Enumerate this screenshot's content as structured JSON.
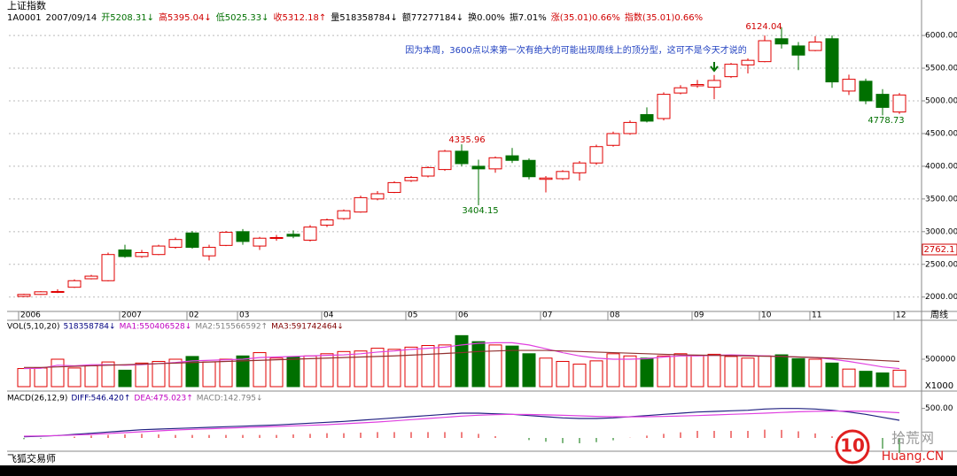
{
  "header": {
    "title": "上证指数",
    "info": [
      {
        "text": "1A0001",
        "color": "#000000"
      },
      {
        "text": "2007/09/14",
        "color": "#000000"
      },
      {
        "text": "开5208.31↓",
        "color": "#007000"
      },
      {
        "text": "高5395.04↓",
        "color": "#d00000"
      },
      {
        "text": "低5025.33↓",
        "color": "#007000"
      },
      {
        "text": "收5312.18↑",
        "color": "#d00000"
      },
      {
        "text": "量518358784↓",
        "color": "#000000"
      },
      {
        "text": "额77277184↓",
        "color": "#000000"
      },
      {
        "text": "换0.00%",
        "color": "#000000"
      },
      {
        "text": "振7.01%",
        "color": "#000000"
      },
      {
        "text": "涨(35.01)0.66%",
        "color": "#d00000"
      },
      {
        "text": "指数(35.01)0.66%",
        "color": "#d00000"
      }
    ]
  },
  "footer": {
    "app": "飞狐交易师",
    "watermark_logo": "10",
    "watermark_name": "拾荒网",
    "watermark_site": "Huang.CN"
  },
  "chart_data": [
    {
      "type": "candlestick",
      "categories": [
        "2006",
        null,
        null,
        null,
        null,
        null,
        "2007",
        null,
        null,
        null,
        "02",
        null,
        null,
        "03",
        null,
        null,
        null,
        null,
        "04",
        null,
        null,
        null,
        null,
        "05",
        null,
        null,
        "06",
        null,
        null,
        null,
        null,
        "07",
        null,
        null,
        null,
        "08",
        null,
        null,
        null,
        null,
        "09",
        null,
        null,
        null,
        "10",
        null,
        null,
        "11",
        null,
        null,
        null,
        null,
        "12"
      ],
      "x_axis_label": "周线",
      "open": [
        2010,
        2040,
        2080,
        2150,
        2280,
        2250,
        2720,
        2620,
        2650,
        2760,
        2980,
        2630,
        2790,
        3000,
        2780,
        2900,
        2960,
        2870,
        3100,
        3200,
        3300,
        3500,
        3600,
        3780,
        3850,
        3950,
        4230,
        4000,
        3960,
        4160,
        4090,
        3800,
        3810,
        3900,
        4050,
        4320,
        4500,
        4790,
        4730,
        5120,
        5230,
        5208.31,
        5370,
        5550,
        5600,
        5950,
        5840,
        5770,
        5950,
        5150,
        5300,
        5100,
        4830
      ],
      "high": [
        2050,
        2090,
        2120,
        2270,
        2340,
        2680,
        2800,
        2720,
        2800,
        2910,
        3010,
        2800,
        3010,
        3040,
        2920,
        2950,
        3020,
        3100,
        3200,
        3340,
        3550,
        3620,
        3770,
        3850,
        4000,
        4250,
        4335.96,
        4100,
        4150,
        4280,
        4120,
        3850,
        3940,
        4080,
        4330,
        4530,
        4700,
        4900,
        5130,
        5240,
        5320,
        5395.04,
        5580,
        5650,
        6000,
        6124.04,
        5900,
        5990,
        6000,
        5400,
        5340,
        5180,
        5120
      ],
      "low": [
        2000,
        2030,
        2060,
        2140,
        2270,
        2240,
        2600,
        2600,
        2640,
        2740,
        2740,
        2560,
        2780,
        2800,
        2720,
        2860,
        2900,
        2850,
        3070,
        3180,
        3290,
        3480,
        3590,
        3760,
        3830,
        3930,
        4000,
        3404.15,
        3900,
        4050,
        3800,
        3600,
        3790,
        3780,
        4020,
        4300,
        4480,
        4670,
        4700,
        5100,
        5200,
        5025.33,
        5350,
        5420,
        5590,
        5800,
        5470,
        5760,
        5200,
        5090,
        4950,
        4778.73,
        4800
      ],
      "close": [
        2040,
        2080,
        2085,
        2250,
        2320,
        2650,
        2620,
        2680,
        2780,
        2880,
        2760,
        2760,
        2990,
        2850,
        2900,
        2910,
        2930,
        3070,
        3180,
        3320,
        3520,
        3580,
        3750,
        3830,
        3980,
        4230,
        4040,
        3960,
        4130,
        4090,
        3840,
        3820,
        3920,
        4050,
        4300,
        4500,
        4670,
        4690,
        5100,
        5200,
        5250,
        5312.18,
        5560,
        5620,
        5920,
        5870,
        5700,
        5900,
        5290,
        5330,
        5000,
        4900,
        5090
      ],
      "up_color": "#e00000",
      "down_color": "#007000",
      "ylim": [
        1780,
        6380
      ],
      "yticks": [
        {
          "value": 2000,
          "label": "2000.00"
        },
        {
          "value": 2500,
          "label": "2500.00"
        },
        {
          "value": 3000,
          "label": "3000.00"
        },
        {
          "value": 3500,
          "label": "3500.00"
        },
        {
          "value": 4000,
          "label": "4000.00"
        },
        {
          "value": 4500,
          "label": "4500.00"
        },
        {
          "value": 5000,
          "label": "5000.00"
        },
        {
          "value": 5500,
          "label": "5500.00"
        },
        {
          "value": 6000,
          "label": "6000.00"
        }
      ],
      "grid": true,
      "annotations": [
        "4335.96",
        "3404.15",
        "6124.04",
        "4778.73",
        "因为本周，3600点以来第一次有绝大的可能出现周线上的顶分型，这可不是今天才说的"
      ],
      "cursor_label": "2762.1"
    },
    {
      "type": "bar",
      "legend": [
        {
          "text": "VOL(5,10,20)",
          "color": "#000000"
        },
        {
          "text": "518358784↓",
          "color": "#000080"
        },
        {
          "text": "MA1:550406528↓",
          "color": "#c000c0"
        },
        {
          "text": "MA2:515566592↑",
          "color": "#808080"
        },
        {
          "text": "MA3:591742464↓",
          "color": "#800000"
        }
      ],
      "values": [
        330000,
        340000,
        500000,
        340000,
        380000,
        450000,
        300000,
        430000,
        460000,
        500000,
        550000,
        450000,
        500000,
        560000,
        620000,
        520000,
        540000,
        560000,
        600000,
        640000,
        650000,
        700000,
        680000,
        720000,
        750000,
        760000,
        930000,
        820000,
        760000,
        740000,
        600000,
        520000,
        460000,
        410000,
        470000,
        600000,
        560000,
        520000,
        560000,
        600000,
        570000,
        590000,
        550000,
        520000,
        560000,
        580000,
        510000,
        500000,
        430000,
        320000,
        280000,
        250000,
        300000
      ],
      "lines": [
        {
          "color": "#e040e0",
          "values": [
            330000,
            335000,
            390000,
            380000,
            400000,
            400000,
            390000,
            400000,
            420000,
            440000,
            470000,
            480000,
            490000,
            500000,
            530000,
            540000,
            550000,
            560000,
            570000,
            580000,
            600000,
            630000,
            650000,
            680000,
            700000,
            720000,
            760000,
            790000,
            800000,
            800000,
            760000,
            690000,
            620000,
            560000,
            520000,
            500000,
            500000,
            510000,
            540000,
            560000,
            560000,
            570000,
            580000,
            570000,
            560000,
            550000,
            540000,
            530000,
            500000,
            460000,
            410000,
            360000,
            330000
          ]
        },
        {
          "color": "#903030",
          "values": [
            350000,
            350000,
            360000,
            370000,
            380000,
            390000,
            400000,
            410000,
            420000,
            430000,
            440000,
            450000,
            460000,
            470000,
            480000,
            490000,
            500000,
            510000,
            520000,
            530000,
            540000,
            550000,
            560000,
            575000,
            590000,
            605000,
            620000,
            640000,
            650000,
            660000,
            660000,
            660000,
            650000,
            640000,
            630000,
            620000,
            610000,
            600000,
            590000,
            580000,
            575000,
            570000,
            565000,
            560000,
            555000,
            550000,
            540000,
            530000,
            520000,
            505000,
            490000,
            475000,
            460000
          ]
        }
      ],
      "ylim": [
        0,
        1000000
      ],
      "yticks": [
        500000
      ],
      "unit_label": "X1000"
    },
    {
      "type": "line",
      "legend": [
        {
          "text": "MACD(26,12,9)",
          "color": "#000000"
        },
        {
          "text": "DIFF:546.420↑",
          "color": "#000080"
        },
        {
          "text": "DEA:475.023↑",
          "color": "#c000c0"
        },
        {
          "text": "MACD:142.795↓",
          "color": "#808080"
        }
      ],
      "series": [
        {
          "color": "#202080",
          "values": [
            20,
            30,
            40,
            60,
            80,
            100,
            120,
            140,
            150,
            160,
            170,
            180,
            190,
            200,
            210,
            220,
            235,
            250,
            265,
            280,
            300,
            320,
            340,
            360,
            380,
            400,
            420,
            420,
            410,
            400,
            380,
            360,
            340,
            330,
            330,
            340,
            360,
            380,
            400,
            420,
            440,
            450,
            460,
            470,
            490,
            500,
            500,
            490,
            470,
            440,
            400,
            350,
            300
          ]
        },
        {
          "color": "#e040e0",
          "values": [
            30,
            35,
            40,
            50,
            60,
            75,
            90,
            105,
            120,
            135,
            145,
            155,
            165,
            175,
            185,
            195,
            205,
            215,
            225,
            240,
            255,
            270,
            290,
            310,
            330,
            350,
            370,
            385,
            395,
            400,
            398,
            392,
            384,
            375,
            366,
            360,
            358,
            360,
            365,
            372,
            380,
            390,
            400,
            410,
            420,
            432,
            444,
            452,
            456,
            456,
            452,
            442,
            428
          ]
        }
      ],
      "bars": [
        -20,
        -10,
        0,
        20,
        40,
        50,
        60,
        70,
        60,
        50,
        50,
        50,
        50,
        50,
        50,
        50,
        60,
        70,
        80,
        80,
        90,
        100,
        100,
        100,
        100,
        100,
        100,
        70,
        30,
        0,
        -36,
        -64,
        -88,
        -90,
        -72,
        -40,
        4,
        40,
        70,
        96,
        120,
        120,
        120,
        120,
        140,
        136,
        112,
        76,
        28,
        -32,
        -104,
        -184,
        -256
      ],
      "bar_up_color": "#e00000",
      "bar_down_color": "#007000",
      "ylim": [
        -150,
        750
      ],
      "yticks": [
        {
          "value": 500,
          "label": "500.00"
        }
      ]
    }
  ]
}
